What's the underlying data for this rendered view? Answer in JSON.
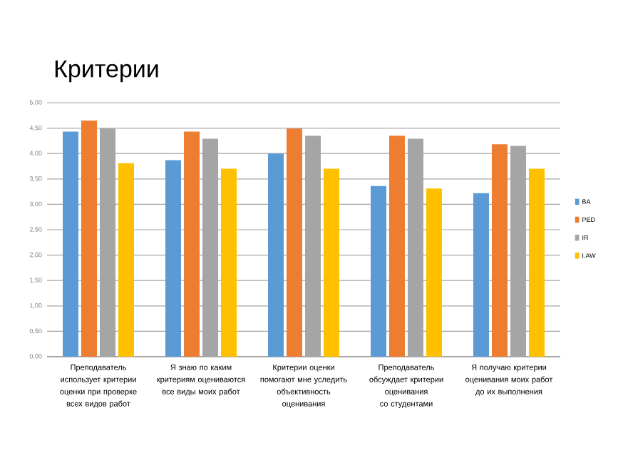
{
  "chart_data": {
    "type": "bar",
    "title": "Критерии",
    "categories": [
      "Преподаватель использует критерии оценки при проверке всех видов работ",
      "Я знаю по каким критериям оцениваются все виды моих работ",
      "Критерии оценки помогают мне уследить объективность оценивания",
      "Преподаватель обсуждает критерии оценивания со студентами",
      "Я получаю критерии оценивания моих работ до их выполнения"
    ],
    "series": [
      {
        "name": "BA",
        "color": "#5b9bd5",
        "values": [
          4.43,
          3.87,
          4.0,
          3.36,
          3.22
        ]
      },
      {
        "name": "PED",
        "color": "#ed7d31",
        "values": [
          4.65,
          4.43,
          4.49,
          4.35,
          4.18
        ]
      },
      {
        "name": "IR",
        "color": "#a5a5a5",
        "values": [
          4.49,
          4.29,
          4.35,
          4.29,
          4.15
        ]
      },
      {
        "name": "LAW",
        "color": "#ffc000",
        "values": [
          3.81,
          3.7,
          3.7,
          3.31,
          3.7
        ]
      }
    ],
    "ylim": [
      0,
      5
    ],
    "yticks": [
      {
        "value": 0,
        "label": "0,00"
      },
      {
        "value": 0.5,
        "label": "0,50"
      },
      {
        "value": 1,
        "label": "1,00"
      },
      {
        "value": 1.5,
        "label": "1,50"
      },
      {
        "value": 2,
        "label": "2,00"
      },
      {
        "value": 2.5,
        "label": "2,50"
      },
      {
        "value": 3,
        "label": "3,00"
      },
      {
        "value": 3.5,
        "label": "3,50"
      },
      {
        "value": 4,
        "label": "4,00"
      },
      {
        "value": 4.5,
        "label": "4,50"
      },
      {
        "value": 5,
        "label": "5,00"
      }
    ],
    "grid": "y",
    "legend": "right"
  }
}
